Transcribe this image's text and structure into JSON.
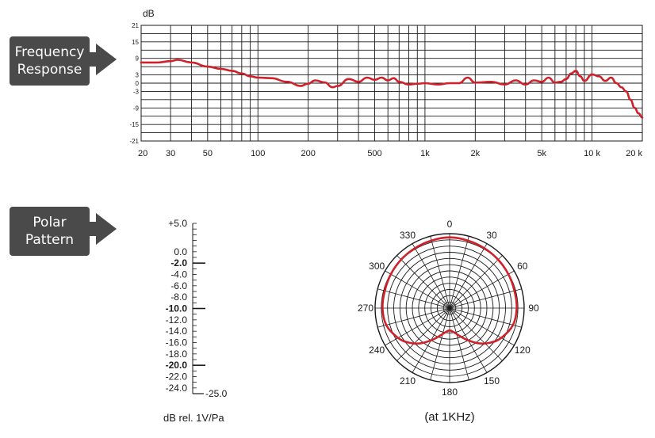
{
  "sections": {
    "frequency_response": {
      "line1": "Frequency",
      "line2": "Response"
    },
    "polar_pattern": {
      "line1": "Polar",
      "line2": "Pattern"
    }
  },
  "colors": {
    "curve": "#d0202a",
    "badge": "#4a4a4a",
    "grid": "#1a1a1a"
  },
  "chart_data": [
    {
      "type": "line",
      "chart": "frequency-response",
      "ylabel": "dB",
      "xscale": "log",
      "xlim": [
        20,
        20000
      ],
      "ylim": [
        -21,
        21
      ],
      "grid": true,
      "x_tick_labels": [
        "20",
        "30",
        "50",
        "100",
        "200",
        "500",
        "1k",
        "2k",
        "5k",
        "10 k",
        "20 k"
      ],
      "x_tick_values": [
        20,
        30,
        50,
        100,
        200,
        500,
        1000,
        2000,
        5000,
        10000,
        20000
      ],
      "y_tick_values": [
        21,
        15,
        9,
        3,
        0,
        -3,
        -9,
        -15,
        -21
      ],
      "y_tick_labels": [
        "21",
        "15",
        "9",
        "3",
        "0",
        "-3",
        "-9",
        "-15",
        "-21"
      ],
      "series": [
        {
          "x": [
            20,
            25,
            30,
            33,
            40,
            50,
            60,
            70,
            80,
            90,
            100,
            120,
            150,
            180,
            200,
            220,
            250,
            280,
            300,
            350,
            400,
            450,
            500,
            550,
            600,
            650,
            700,
            800,
            900,
            1000,
            1200,
            1400,
            1600,
            1800,
            2000,
            2500,
            3000,
            3500,
            4000,
            4500,
            5000,
            5500,
            6000,
            6500,
            7000,
            7500,
            8000,
            8500,
            9000,
            10000,
            11000,
            12000,
            13000,
            14000,
            15000,
            16000,
            17000,
            18000,
            19000,
            20000
          ],
          "y": [
            7.5,
            7.5,
            8,
            8.5,
            7.5,
            6,
            5.2,
            4.5,
            3.5,
            2.5,
            2,
            1.8,
            0.5,
            -1,
            -0.2,
            1,
            0.3,
            -1.5,
            -1,
            1.5,
            0.5,
            2,
            1.2,
            2,
            1,
            1.8,
            0.5,
            -0.5,
            -0.2,
            0,
            -0.5,
            0,
            0,
            2,
            0.2,
            0.5,
            -0.5,
            1,
            -0.5,
            1,
            0.5,
            2,
            0.2,
            0.5,
            1.5,
            3.5,
            4.5,
            2.5,
            0.8,
            3.2,
            2.5,
            0.8,
            2,
            0,
            -1.5,
            -3,
            -6,
            -9,
            -11,
            -12.5
          ]
        }
      ]
    },
    {
      "type": "line",
      "chart": "sensitivity-scale",
      "labels": [
        "+5.0",
        "0.0",
        "-2.0",
        "-4.0",
        "-6.0",
        "-8.0",
        "-10.0",
        "-12.0",
        "-14.0",
        "-16.0",
        "-18.0",
        "-20.0",
        "-22.0",
        "-24.0",
        "-25.0"
      ],
      "values": [
        5,
        0,
        -2,
        -4,
        -6,
        -8,
        -10,
        -12,
        -14,
        -16,
        -18,
        -20,
        -22,
        -24,
        -25
      ],
      "bold_labels": [
        "-2.0",
        "-10.0",
        "-20.0"
      ],
      "ylim": [
        -25,
        5
      ],
      "ylabel": "dB rel. 1V/Pa"
    },
    {
      "type": "line",
      "chart": "polar-pattern",
      "caption": "(at 1KHz)",
      "angle_labels": [
        "0",
        "30",
        "60",
        "90",
        "120",
        "150",
        "180",
        "210",
        "240",
        "270",
        "300",
        "330"
      ],
      "angles": [
        0,
        30,
        60,
        90,
        120,
        150,
        180,
        210,
        240,
        270,
        300,
        330
      ],
      "rings": 12,
      "spokes": 24,
      "r_max": 1,
      "series": [
        {
          "theta": [
            0,
            15,
            30,
            45,
            60,
            75,
            90,
            105,
            120,
            130,
            140,
            150,
            160,
            170,
            180,
            190,
            200,
            210,
            220,
            230,
            240,
            255,
            270,
            285,
            300,
            315,
            330,
            345,
            360
          ],
          "r": [
            0.95,
            0.94,
            0.93,
            0.92,
            0.91,
            0.9,
            0.9,
            0.88,
            0.8,
            0.72,
            0.62,
            0.5,
            0.4,
            0.33,
            0.3,
            0.33,
            0.4,
            0.5,
            0.62,
            0.72,
            0.8,
            0.88,
            0.9,
            0.9,
            0.91,
            0.92,
            0.93,
            0.94,
            0.95
          ]
        }
      ]
    }
  ]
}
